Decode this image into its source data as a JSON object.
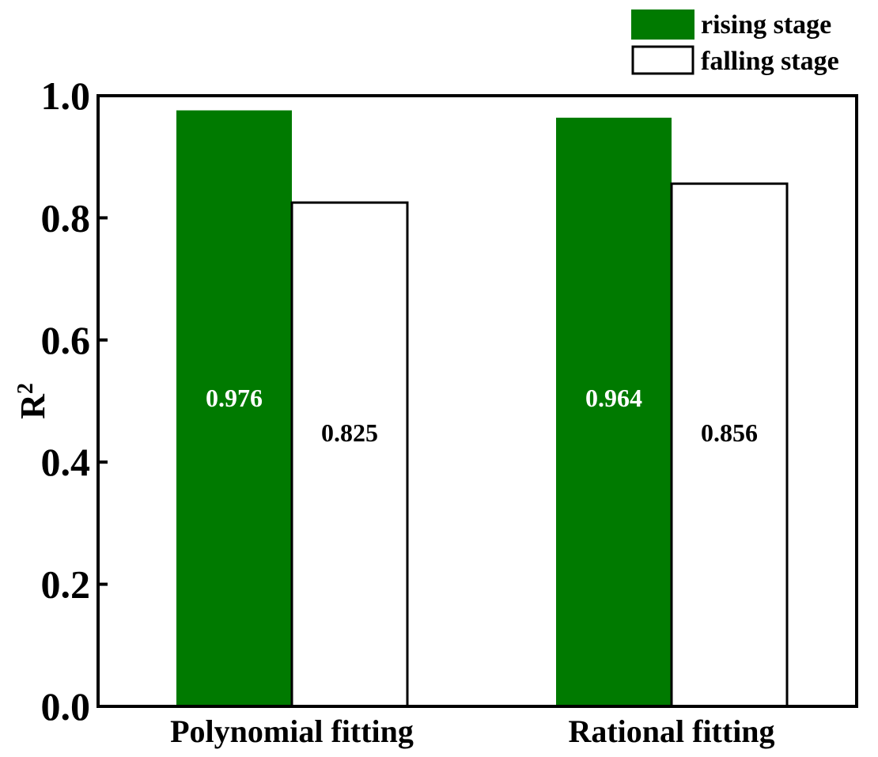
{
  "chart_data": {
    "type": "bar",
    "title": "",
    "xlabel": "",
    "ylabel": "R",
    "ylabel_superscript": "2",
    "categories": [
      "Polynomial fitting",
      "Rational fitting"
    ],
    "ylim": [
      0.0,
      1.0
    ],
    "yticks": [
      "0.0",
      "0.2",
      "0.4",
      "0.6",
      "0.8",
      "1.0"
    ],
    "ytick_values": [
      0.0,
      0.2,
      0.4,
      0.6,
      0.8,
      1.0
    ],
    "series": [
      {
        "name": "rising stage",
        "values": [
          0.976,
          0.964
        ],
        "labels": [
          "0.976",
          "0.964"
        ],
        "fill": "#007a00",
        "stroke": "#007a00",
        "label_color": "#ffffff"
      },
      {
        "name": "falling stage",
        "values": [
          0.825,
          0.856
        ],
        "labels": [
          "0.825",
          "0.856"
        ],
        "fill": "#ffffff",
        "stroke": "#000000",
        "label_color": "#000000"
      }
    ],
    "legend_position": "top-right",
    "grid": false
  }
}
